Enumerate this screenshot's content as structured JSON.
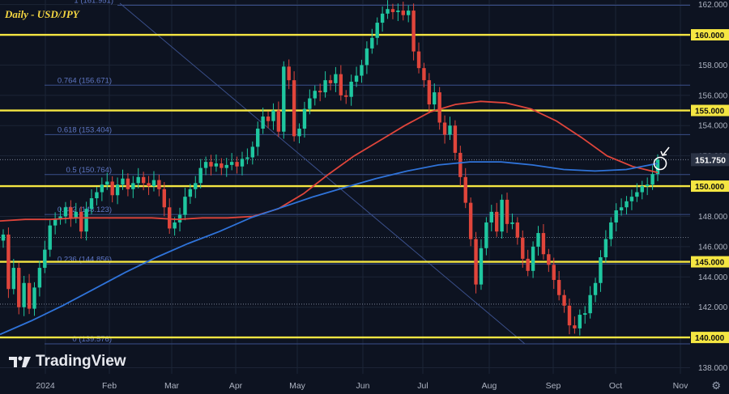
{
  "header": {
    "title": "Daily - USD/JPY"
  },
  "brand": {
    "name": "TradingView"
  },
  "icons": {
    "settings": "gear-icon",
    "marker": "arrow-down-left-icon"
  },
  "colors": {
    "background": "#0d1321",
    "grid": "#1c2436",
    "fib_line": "#3a4f8a",
    "fib_label": "#5f77c4",
    "key_level": "#f5e642",
    "ma_red": "#e0453b",
    "ma_blue": "#2f73d9",
    "candle_up": "#1fc7a0",
    "candle_down": "#e0453b",
    "price_label_bg": "#2a3244",
    "axis_text": "#aeb4c2"
  },
  "chart_data": {
    "type": "candlestick",
    "title": "Daily - USD/JPY",
    "symbol": "USD/JPY",
    "timeframe": "Daily",
    "x_ticks": [
      "2024",
      "Feb",
      "Mar",
      "Apr",
      "May",
      "Jun",
      "Jul",
      "Aug",
      "Sep",
      "Oct",
      "Nov"
    ],
    "y_ticks": [
      "138.000",
      "140.000",
      "142.000",
      "144.000",
      "146.000",
      "148.000",
      "150.000",
      "152.000",
      "154.000",
      "156.000",
      "158.000",
      "160.000",
      "162.000"
    ],
    "ylim": [
      137.6,
      162.3
    ],
    "current_price": {
      "label": "151.750",
      "value": 151.75
    },
    "key_levels": [
      {
        "value": 160.0,
        "label": "160.000"
      },
      {
        "value": 155.0,
        "label": "155.000"
      },
      {
        "value": 150.0,
        "label": "150.000"
      },
      {
        "value": 145.0,
        "label": "145.000"
      },
      {
        "value": 140.0,
        "label": "140.000"
      }
    ],
    "fib_levels": [
      {
        "label": "1 (161.951)",
        "value": 161.951
      },
      {
        "label": "0.764 (156.671)",
        "value": 156.671
      },
      {
        "label": "0.618 (153.404)",
        "value": 153.404
      },
      {
        "label": "0.5 (150.764)",
        "value": 150.764
      },
      {
        "label": "0.382 (148.123)",
        "value": 148.123
      },
      {
        "label": "0.236 (144.856)",
        "value": 144.856
      },
      {
        "label": "0 (139.576)",
        "value": 139.576
      }
    ],
    "close_series": [
      146.8,
      143.2,
      144.6,
      142.0,
      143.6,
      141.9,
      143.3,
      144.6,
      145.8,
      147.4,
      147.8,
      148.0,
      148.6,
      147.9,
      148.3,
      147.0,
      148.5,
      149.2,
      149.6,
      150.1,
      150.3,
      149.4,
      150.1,
      150.5,
      149.8,
      150.2,
      150.6,
      150.2,
      150.0,
      150.4,
      149.8,
      148.6,
      147.2,
      147.6,
      148.1,
      149.3,
      149.8,
      150.2,
      151.2,
      151.6,
      151.3,
      151.5,
      151.2,
      151.4,
      151.6,
      151.3,
      151.8,
      151.9,
      152.6,
      153.8,
      154.6,
      154.3,
      155.0,
      153.6,
      157.9,
      157.0,
      153.3,
      153.8,
      155.1,
      155.8,
      156.3,
      156.2,
      157.0,
      156.8,
      157.4,
      156.0,
      155.9,
      156.9,
      157.3,
      158.0,
      159.1,
      159.8,
      160.8,
      161.4,
      161.7,
      161.5,
      161.6,
      161.3,
      161.6,
      158.9,
      157.8,
      157.0,
      155.4,
      156.2,
      154.2,
      153.4,
      154.0,
      152.2,
      150.6,
      148.9,
      146.5,
      143.5,
      145.9,
      147.6,
      148.3,
      147.0,
      149.1,
      147.5,
      147.6,
      146.6,
      145.2,
      144.4,
      146.0,
      146.9,
      145.5,
      144.8,
      143.8,
      142.8,
      142.1,
      140.8,
      140.6,
      141.5,
      141.6,
      142.8,
      143.6,
      145.3,
      146.5,
      147.6,
      148.4,
      148.6,
      149.0,
      149.3,
      149.6,
      150.0,
      150.1,
      150.8,
      151.75
    ],
    "moving_averages": [
      {
        "color": "red",
        "values": [
          147.7,
          147.8,
          147.8,
          147.9,
          147.9,
          147.9,
          147.9,
          147.8,
          147.9,
          147.9,
          148.0,
          148.5,
          149.5,
          150.8,
          152.0,
          153.0,
          154.0,
          154.9,
          155.4,
          155.6,
          155.5,
          155.1,
          154.3,
          153.2,
          152.0,
          151.3,
          150.9
        ]
      },
      {
        "color": "blue",
        "values": [
          140.2,
          141.1,
          142.1,
          143.2,
          144.3,
          145.3,
          146.2,
          147.0,
          147.9,
          148.6,
          149.3,
          149.9,
          150.5,
          151.0,
          151.4,
          151.6,
          151.6,
          151.4,
          151.1,
          151.0,
          151.1,
          151.5
        ]
      }
    ],
    "annotation": {
      "type": "circle_with_arrow",
      "value": 151.5
    }
  }
}
